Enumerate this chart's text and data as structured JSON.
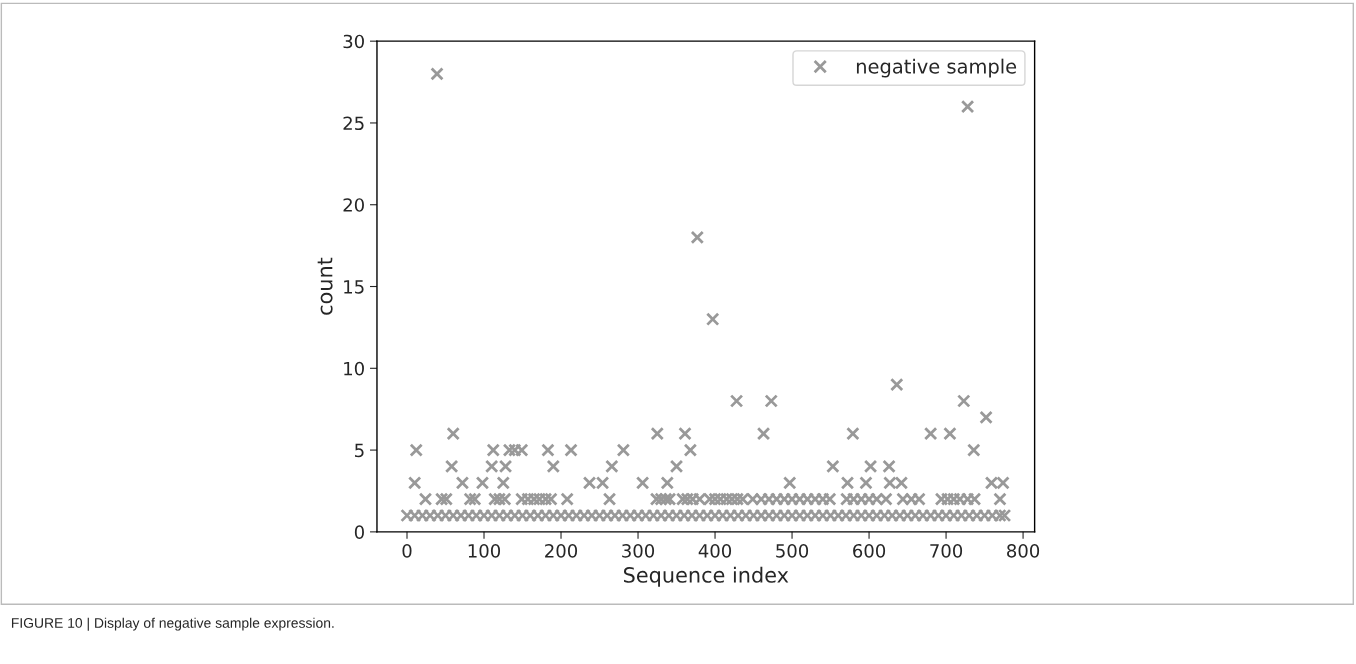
{
  "chart_data": {
    "type": "scatter",
    "xlabel": "Sequence index",
    "ylabel": "count",
    "xlim": [
      -39,
      815
    ],
    "ylim": [
      0,
      30
    ],
    "xticks": [
      0,
      100,
      200,
      300,
      400,
      500,
      600,
      700,
      800
    ],
    "yticks": [
      0,
      5,
      10,
      15,
      20,
      25,
      30
    ],
    "marker": "cross",
    "legend": "top right",
    "grid": false,
    "annotations": [
      "FIGURE 10 | Display of negative sample expression."
    ],
    "series": [
      {
        "name": "negative sample",
        "color": "#999999",
        "x": [
          0,
          10,
          20,
          30,
          40,
          50,
          60,
          70,
          80,
          90,
          100,
          110,
          120,
          130,
          140,
          150,
          160,
          170,
          180,
          190,
          200,
          210,
          220,
          230,
          240,
          250,
          260,
          270,
          280,
          290,
          300,
          310,
          320,
          330,
          340,
          350,
          360,
          370,
          380,
          390,
          400,
          410,
          420,
          430,
          440,
          450,
          460,
          470,
          480,
          490,
          500,
          510,
          520,
          530,
          540,
          550,
          560,
          570,
          580,
          590,
          600,
          610,
          620,
          630,
          640,
          650,
          660,
          670,
          680,
          690,
          700,
          710,
          720,
          730,
          740,
          750,
          760,
          770,
          776,
          24,
          45,
          51,
          82,
          88,
          114,
          120,
          127,
          149,
          157,
          165,
          172,
          180,
          187,
          208,
          263,
          324,
          330,
          336,
          341,
          358,
          364,
          371,
          380,
          393,
          400,
          407,
          415,
          422,
          429,
          436,
          449,
          460,
          470,
          480,
          490,
          500,
          510,
          520,
          530,
          540,
          549,
          571,
          580,
          590,
          600,
          610,
          622,
          644,
          655,
          665,
          694,
          702,
          710,
          718,
          728,
          737,
          770,
          10,
          72,
          98,
          125,
          237,
          254,
          306,
          338,
          497,
          572,
          596,
          627,
          642,
          759,
          774,
          58,
          110,
          128,
          190,
          266,
          350,
          553,
          602,
          626,
          12,
          112,
          133,
          140,
          149,
          183,
          213,
          281,
          368,
          736,
          60,
          325,
          361,
          463,
          579,
          680,
          705,
          752,
          428,
          473,
          723,
          636,
          397,
          377,
          728,
          39
        ],
        "values": [
          1,
          1,
          1,
          1,
          1,
          1,
          1,
          1,
          1,
          1,
          1,
          1,
          1,
          1,
          1,
          1,
          1,
          1,
          1,
          1,
          1,
          1,
          1,
          1,
          1,
          1,
          1,
          1,
          1,
          1,
          1,
          1,
          1,
          1,
          1,
          1,
          1,
          1,
          1,
          1,
          1,
          1,
          1,
          1,
          1,
          1,
          1,
          1,
          1,
          1,
          1,
          1,
          1,
          1,
          1,
          1,
          1,
          1,
          1,
          1,
          1,
          1,
          1,
          1,
          1,
          1,
          1,
          1,
          1,
          1,
          1,
          1,
          1,
          1,
          1,
          1,
          1,
          1,
          1,
          2,
          2,
          2,
          2,
          2,
          2,
          2,
          2,
          2,
          2,
          2,
          2,
          2,
          2,
          2,
          2,
          2,
          2,
          2,
          2,
          2,
          2,
          2,
          2,
          2,
          2,
          2,
          2,
          2,
          2,
          2,
          2,
          2,
          2,
          2,
          2,
          2,
          2,
          2,
          2,
          2,
          2,
          2,
          2,
          2,
          2,
          2,
          2,
          2,
          2,
          2,
          2,
          2,
          2,
          2,
          2,
          2,
          2,
          3,
          3,
          3,
          3,
          3,
          3,
          3,
          3,
          3,
          3,
          3,
          3,
          3,
          3,
          3,
          4,
          4,
          4,
          4,
          4,
          4,
          4,
          4,
          4,
          5,
          5,
          5,
          5,
          5,
          5,
          5,
          5,
          5,
          5,
          6,
          6,
          6,
          6,
          6,
          6,
          6,
          7,
          8,
          8,
          8,
          9,
          13,
          18,
          26,
          28
        ]
      }
    ]
  }
}
